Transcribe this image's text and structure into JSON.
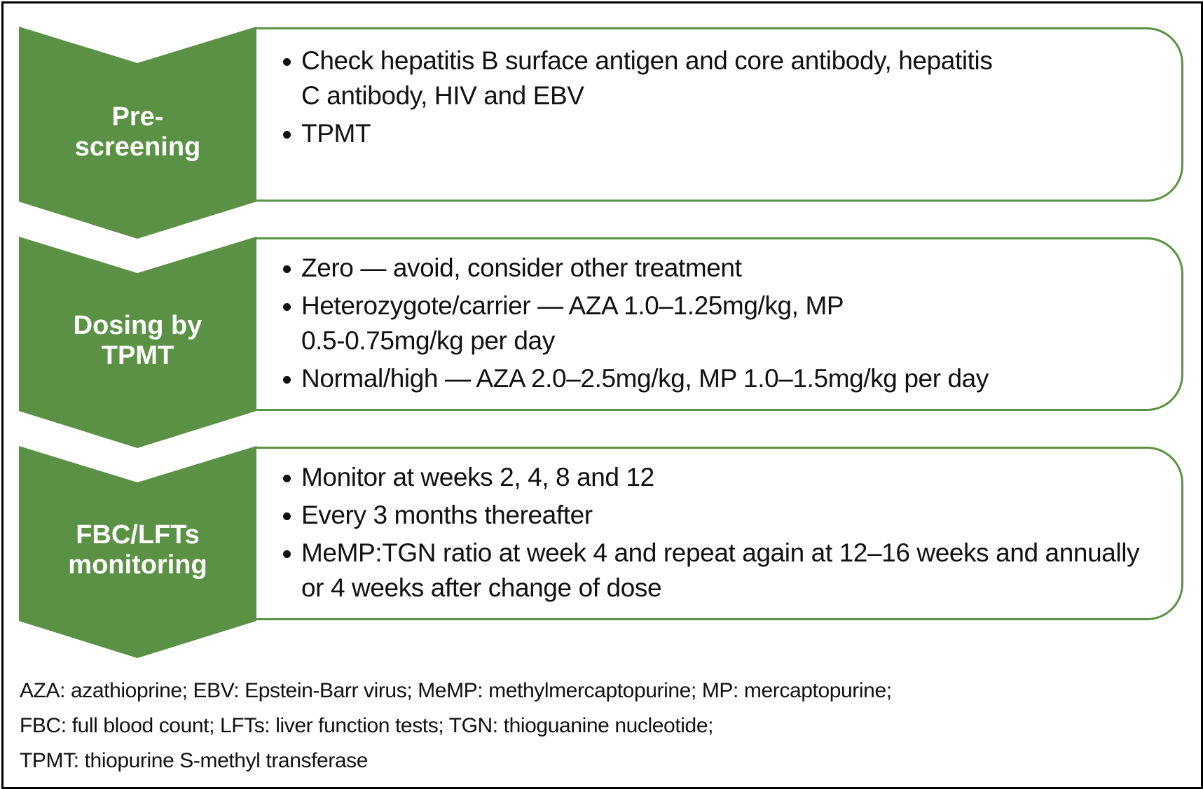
{
  "colors": {
    "green": "#5b9144",
    "text": "#111111",
    "border": "#000000"
  },
  "steps": [
    {
      "label_lines": [
        "Pre-",
        "screening"
      ],
      "items": [
        "Check hepatitis B surface antigen and core antibody, hepatitis C antibody, HIV and EBV",
        "TPMT"
      ]
    },
    {
      "label_lines": [
        "Dosing by",
        "TPMT"
      ],
      "items": [
        "Zero — avoid, consider other treatment",
        "Heterozygote/carrier — AZA 1.0–1.25mg/kg, MP 0.5-0.75mg/kg per day",
        "Normal/high — AZA 2.0–2.5mg/kg, MP 1.0–1.5mg/kg per day"
      ]
    },
    {
      "label_lines": [
        "FBC/LFTs",
        "monitoring"
      ],
      "items": [
        "Monitor at weeks 2, 4, 8 and 12",
        "Every 3 months thereafter",
        "MeMP:TGN ratio at week 4 and repeat again at 12–16 weeks and annually or 4 weeks after change of dose"
      ]
    }
  ],
  "footnote_lines": [
    "AZA: azathioprine; EBV: Epstein-Barr virus; MeMP: methylmercaptopurine; MP: mercaptopurine;",
    "FBC: full blood count; LFTs: liver function tests; TGN: thioguanine nucleotide;",
    "TPMT: thiopurine S-methyl transferase"
  ]
}
